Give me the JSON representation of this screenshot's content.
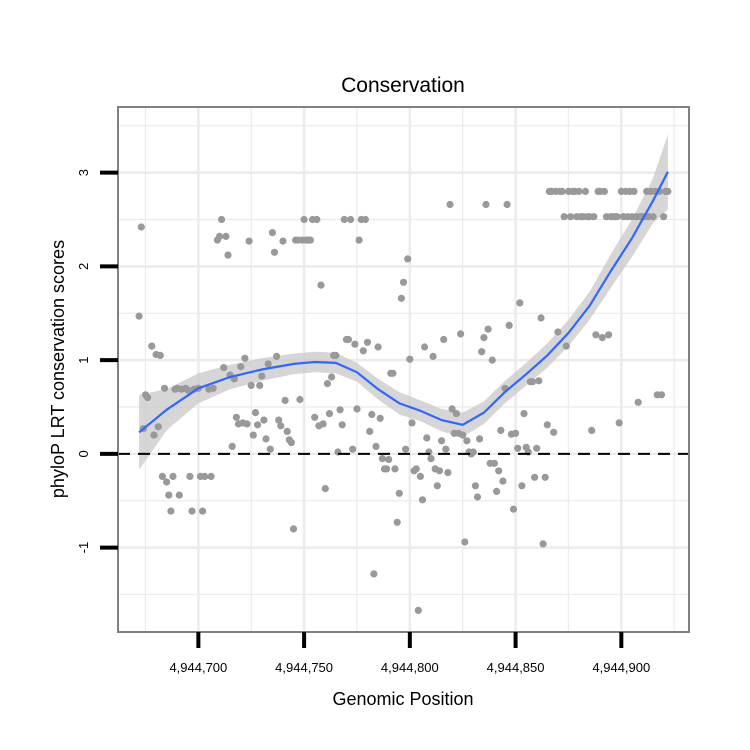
{
  "chart_data": {
    "type": "scatter",
    "title": "Conservation",
    "xlabel": "Genomic Position",
    "ylabel": "phyloP LRT conservation scores",
    "xlim": [
      4944662,
      4944932
    ],
    "ylim": [
      -1.9,
      3.7
    ],
    "x_ticks": [
      4944700,
      4944750,
      4944800,
      4944850,
      4944900
    ],
    "x_tick_labels": [
      "4,944,700",
      "4,944,750",
      "4,944,800",
      "4,944,850",
      "4,944,900"
    ],
    "y_ticks": [
      -1,
      0,
      1,
      2,
      3
    ],
    "y_tick_labels": [
      "-1",
      "0",
      "1",
      "2",
      "3"
    ],
    "grid": true,
    "reference_line": {
      "y": 0,
      "style": "dashed"
    },
    "colors": {
      "points": "#999999",
      "smooth_line": "#3366FF",
      "confidence_band": "#C8C8C8",
      "panel_border": "#808080",
      "grid": "#EBEBEB"
    },
    "series": [
      {
        "type": "points",
        "points": [
          [
            4944672,
            1.47
          ],
          [
            4944673,
            2.42
          ],
          [
            4944674,
            0.27
          ],
          [
            4944675,
            0.63
          ],
          [
            4944676,
            0.6
          ],
          [
            4944678,
            1.15
          ],
          [
            4944679,
            0.2
          ],
          [
            4944680,
            1.06
          ],
          [
            4944681,
            0.29
          ],
          [
            4944682,
            1.05
          ],
          [
            4944683,
            -0.24
          ],
          [
            4944684,
            0.7
          ],
          [
            4944685,
            -0.3
          ],
          [
            4944686,
            -0.44
          ],
          [
            4944687,
            -0.61
          ],
          [
            4944688,
            -0.24
          ],
          [
            4944689,
            0.69
          ],
          [
            4944690,
            0.7
          ],
          [
            4944691,
            -0.44
          ],
          [
            4944692,
            0.69
          ],
          [
            4944694,
            0.7
          ],
          [
            4944695,
            0.68
          ],
          [
            4944696,
            -0.24
          ],
          [
            4944697,
            -0.61
          ],
          [
            4944698,
            0.69
          ],
          [
            4944700,
            0.7
          ],
          [
            4944701,
            -0.24
          ],
          [
            4944702,
            -0.61
          ],
          [
            4944703,
            -0.24
          ],
          [
            4944705,
            0.69
          ],
          [
            4944706,
            -0.24
          ],
          [
            4944707,
            0.7
          ],
          [
            4944709,
            2.28
          ],
          [
            4944710,
            2.32
          ],
          [
            4944711,
            2.5
          ],
          [
            4944712,
            0.92
          ],
          [
            4944713,
            2.32
          ],
          [
            4944714,
            2.12
          ],
          [
            4944715,
            0.84
          ],
          [
            4944716,
            0.08
          ],
          [
            4944717,
            0.8
          ],
          [
            4944718,
            0.39
          ],
          [
            4944719,
            0.32
          ],
          [
            4944720,
            0.93
          ],
          [
            4944721,
            0.33
          ],
          [
            4944722,
            1.02
          ],
          [
            4944723,
            0.32
          ],
          [
            4944724,
            2.27
          ],
          [
            4944725,
            0.73
          ],
          [
            4944726,
            0.2
          ],
          [
            4944727,
            0.44
          ],
          [
            4944728,
            0.31
          ],
          [
            4944729,
            0.73
          ],
          [
            4944730,
            0.83
          ],
          [
            4944731,
            0.36
          ],
          [
            4944732,
            0.16
          ],
          [
            4944733,
            0.96
          ],
          [
            4944734,
            0.05
          ],
          [
            4944735,
            2.36
          ],
          [
            4944736,
            2.15
          ],
          [
            4944737,
            1.04
          ],
          [
            4944738,
            0.36
          ],
          [
            4944739,
            0.3
          ],
          [
            4944740,
            2.27
          ],
          [
            4944741,
            0.57
          ],
          [
            4944742,
            0.24
          ],
          [
            4944743,
            0.15
          ],
          [
            4944744,
            0.12
          ],
          [
            4944745,
            -0.8
          ],
          [
            4944746,
            2.28
          ],
          [
            4944747,
            2.28
          ],
          [
            4944748,
            0.58
          ],
          [
            4944749,
            2.28
          ],
          [
            4944750,
            2.5
          ],
          [
            4944751,
            2.28
          ],
          [
            4944752,
            2.28
          ],
          [
            4944753,
            2.28
          ],
          [
            4944754,
            2.5
          ],
          [
            4944755,
            0.39
          ],
          [
            4944756,
            2.5
          ],
          [
            4944757,
            0.3
          ],
          [
            4944758,
            1.8
          ],
          [
            4944759,
            0.32
          ],
          [
            4944760,
            -0.37
          ],
          [
            4944761,
            0.75
          ],
          [
            4944762,
            0.43
          ],
          [
            4944763,
            0.82
          ],
          [
            4944764,
            1.05
          ],
          [
            4944765,
            1.05
          ],
          [
            4944766,
            0.02
          ],
          [
            4944767,
            0.47
          ],
          [
            4944768,
            0.31
          ],
          [
            4944769,
            2.5
          ],
          [
            4944770,
            1.22
          ],
          [
            4944771,
            1.22
          ],
          [
            4944772,
            2.5
          ],
          [
            4944773,
            0.05
          ],
          [
            4944774,
            1.17
          ],
          [
            4944775,
            0.48
          ],
          [
            4944776,
            2.28
          ],
          [
            4944777,
            2.5
          ],
          [
            4944778,
            1.1
          ],
          [
            4944779,
            2.5
          ],
          [
            4944780,
            1.19
          ],
          [
            4944781,
            0.24
          ],
          [
            4944782,
            0.42
          ],
          [
            4944783,
            -1.28
          ],
          [
            4944784,
            0.08
          ],
          [
            4944785,
            1.14
          ],
          [
            4944786,
            0.38
          ],
          [
            4944787,
            -0.05
          ],
          [
            4944788,
            -0.16
          ],
          [
            4944789,
            -0.16
          ],
          [
            4944790,
            -0.06
          ],
          [
            4944791,
            0.86
          ],
          [
            4944792,
            0.86
          ],
          [
            4944793,
            -0.16
          ],
          [
            4944794,
            -0.73
          ],
          [
            4944795,
            -0.42
          ],
          [
            4944796,
            1.66
          ],
          [
            4944797,
            1.83
          ],
          [
            4944798,
            0.05
          ],
          [
            4944799,
            2.08
          ],
          [
            4944800,
            1.01
          ],
          [
            4944801,
            0.33
          ],
          [
            4944802,
            -0.18
          ],
          [
            4944803,
            -0.16
          ],
          [
            4944804,
            -1.67
          ],
          [
            4944805,
            -0.24
          ],
          [
            4944806,
            -0.49
          ],
          [
            4944807,
            1.14
          ],
          [
            4944808,
            0.17
          ],
          [
            4944809,
            0.02
          ],
          [
            4944810,
            -0.05
          ],
          [
            4944811,
            1.04
          ],
          [
            4944812,
            -0.16
          ],
          [
            4944813,
            -0.34
          ],
          [
            4944814,
            -0.18
          ],
          [
            4944815,
            0.14
          ],
          [
            4944816,
            1.22
          ],
          [
            4944817,
            0.05
          ],
          [
            4944818,
            -0.2
          ],
          [
            4944819,
            2.66
          ],
          [
            4944820,
            0.48
          ],
          [
            4944821,
            0.22
          ],
          [
            4944822,
            0.43
          ],
          [
            4944823,
            0.22
          ],
          [
            4944824,
            1.28
          ],
          [
            4944825,
            0.2
          ],
          [
            4944826,
            -0.94
          ],
          [
            4944827,
            0.14
          ],
          [
            4944828,
            0.02
          ],
          [
            4944829,
            0.0
          ],
          [
            4944830,
            0.02
          ],
          [
            4944831,
            -0.34
          ],
          [
            4944832,
            -0.46
          ],
          [
            4944833,
            0.16
          ],
          [
            4944834,
            1.09
          ],
          [
            4944835,
            1.24
          ],
          [
            4944836,
            2.66
          ],
          [
            4944837,
            1.33
          ],
          [
            4944838,
            -0.1
          ],
          [
            4944839,
            1.0
          ],
          [
            4944840,
            -0.1
          ],
          [
            4944841,
            -0.4
          ],
          [
            4944842,
            -0.18
          ],
          [
            4944843,
            0.25
          ],
          [
            4944844,
            -0.29
          ],
          [
            4944845,
            0.7
          ],
          [
            4944846,
            2.66
          ],
          [
            4944847,
            1.37
          ],
          [
            4944848,
            0.21
          ],
          [
            4944849,
            -0.59
          ],
          [
            4944850,
            0.22
          ],
          [
            4944851,
            0.06
          ],
          [
            4944852,
            1.61
          ],
          [
            4944853,
            -0.34
          ],
          [
            4944854,
            0.43
          ],
          [
            4944855,
            0.07
          ],
          [
            4944856,
            0.02
          ],
          [
            4944857,
            0.77
          ],
          [
            4944858,
            0.77
          ],
          [
            4944859,
            -0.25
          ],
          [
            4944860,
            0.06
          ],
          [
            4944861,
            0.78
          ],
          [
            4944862,
            1.45
          ],
          [
            4944863,
            -0.96
          ],
          [
            4944864,
            -0.25
          ],
          [
            4944865,
            0.31
          ],
          [
            4944866,
            2.8
          ],
          [
            4944867,
            2.8
          ],
          [
            4944868,
            0.23
          ],
          [
            4944869,
            2.8
          ],
          [
            4944870,
            1.3
          ],
          [
            4944871,
            2.8
          ],
          [
            4944872,
            2.8
          ],
          [
            4944873,
            2.53
          ],
          [
            4944874,
            1.15
          ],
          [
            4944875,
            2.8
          ],
          [
            4944876,
            2.53
          ],
          [
            4944877,
            2.8
          ],
          [
            4944878,
            2.8
          ],
          [
            4944879,
            2.53
          ],
          [
            4944880,
            2.8
          ],
          [
            4944881,
            2.53
          ],
          [
            4944882,
            2.53
          ],
          [
            4944883,
            2.8
          ],
          [
            4944884,
            2.53
          ],
          [
            4944885,
            2.53
          ],
          [
            4944886,
            0.25
          ],
          [
            4944887,
            2.53
          ],
          [
            4944888,
            1.27
          ],
          [
            4944889,
            2.8
          ],
          [
            4944890,
            2.8
          ],
          [
            4944891,
            1.24
          ],
          [
            4944892,
            2.8
          ],
          [
            4944893,
            2.53
          ],
          [
            4944894,
            1.27
          ],
          [
            4944895,
            2.53
          ],
          [
            4944896,
            2.53
          ],
          [
            4944897,
            2.53
          ],
          [
            4944898,
            2.53
          ],
          [
            4944899,
            0.33
          ],
          [
            4944900,
            2.8
          ],
          [
            4944901,
            2.53
          ],
          [
            4944902,
            2.8
          ],
          [
            4944903,
            2.53
          ],
          [
            4944904,
            2.8
          ],
          [
            4944905,
            2.53
          ],
          [
            4944906,
            2.8
          ],
          [
            4944907,
            2.53
          ],
          [
            4944908,
            0.55
          ],
          [
            4944909,
            2.53
          ],
          [
            4944910,
            2.53
          ],
          [
            4944911,
            2.53
          ],
          [
            4944912,
            2.8
          ],
          [
            4944913,
            2.53
          ],
          [
            4944914,
            2.8
          ],
          [
            4944915,
            2.53
          ],
          [
            4944916,
            2.8
          ],
          [
            4944917,
            0.63
          ],
          [
            4944918,
            2.8
          ],
          [
            4944919,
            0.63
          ],
          [
            4944920,
            2.53
          ],
          [
            4944921,
            2.8
          ],
          [
            4944922,
            2.8
          ]
        ]
      },
      {
        "type": "smooth",
        "x": [
          4944672,
          4944685,
          4944700,
          4944715,
          4944730,
          4944745,
          4944755,
          4944765,
          4944775,
          4944785,
          4944795,
          4944805,
          4944815,
          4944825,
          4944835,
          4944845,
          4944855,
          4944865,
          4944875,
          4944885,
          4944895,
          4944905,
          4944915,
          4944922
        ],
        "y": [
          0.23,
          0.47,
          0.7,
          0.82,
          0.9,
          0.96,
          0.98,
          0.97,
          0.87,
          0.69,
          0.54,
          0.46,
          0.36,
          0.31,
          0.44,
          0.66,
          0.85,
          1.05,
          1.29,
          1.58,
          1.95,
          2.3,
          2.7,
          3.01
        ],
        "ci_low": [
          -0.17,
          0.25,
          0.54,
          0.69,
          0.78,
          0.85,
          0.87,
          0.86,
          0.77,
          0.58,
          0.42,
          0.35,
          0.24,
          0.18,
          0.32,
          0.54,
          0.73,
          0.92,
          1.15,
          1.43,
          1.77,
          2.1,
          2.46,
          2.61
        ],
        "ci_high": [
          0.63,
          0.69,
          0.86,
          0.95,
          1.02,
          1.07,
          1.09,
          1.08,
          0.97,
          0.8,
          0.66,
          0.57,
          0.48,
          0.44,
          0.56,
          0.78,
          0.97,
          1.18,
          1.43,
          1.73,
          2.13,
          2.5,
          2.94,
          3.41
        ]
      }
    ]
  }
}
